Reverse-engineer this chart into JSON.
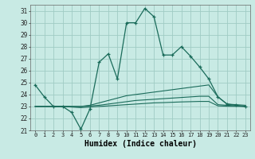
{
  "title": "",
  "xlabel": "Humidex (Indice chaleur)",
  "ylabel": "",
  "bg_color": "#c8eae4",
  "plot_bg_color": "#c8eae4",
  "grid_color": "#a0ccc4",
  "line_color": "#1a6b5a",
  "xlim": [
    -0.5,
    23.5
  ],
  "ylim": [
    21,
    31.5
  ],
  "yticks": [
    21,
    22,
    23,
    24,
    25,
    26,
    27,
    28,
    29,
    30,
    31
  ],
  "xticks": [
    0,
    1,
    2,
    3,
    4,
    5,
    6,
    7,
    8,
    9,
    10,
    11,
    12,
    13,
    14,
    15,
    16,
    17,
    18,
    19,
    20,
    21,
    22,
    23
  ],
  "lines": [
    {
      "x": [
        0,
        1,
        2,
        3,
        4,
        5,
        6,
        7,
        8,
        9,
        10,
        11,
        12,
        13,
        14,
        15,
        16,
        17,
        18,
        19,
        20,
        21,
        22,
        23
      ],
      "y": [
        24.8,
        23.8,
        23.0,
        23.0,
        22.5,
        21.1,
        22.8,
        26.7,
        27.4,
        25.3,
        30.0,
        30.0,
        31.2,
        30.5,
        27.3,
        27.3,
        28.0,
        27.2,
        26.3,
        25.3,
        23.8,
        23.2,
        23.1,
        23.0
      ],
      "marker": true
    },
    {
      "x": [
        0,
        1,
        2,
        3,
        4,
        5,
        6,
        7,
        8,
        9,
        10,
        11,
        12,
        13,
        14,
        15,
        16,
        17,
        18,
        19,
        20,
        21,
        22,
        23
      ],
      "y": [
        23.0,
        23.0,
        23.0,
        23.0,
        23.0,
        23.0,
        23.1,
        23.3,
        23.5,
        23.7,
        23.9,
        24.0,
        24.1,
        24.2,
        24.3,
        24.4,
        24.5,
        24.6,
        24.7,
        24.8,
        23.8,
        23.2,
        23.15,
        23.1
      ],
      "marker": false
    },
    {
      "x": [
        0,
        1,
        2,
        3,
        4,
        5,
        6,
        7,
        8,
        9,
        10,
        11,
        12,
        13,
        14,
        15,
        16,
        17,
        18,
        19,
        20,
        21,
        22,
        23
      ],
      "y": [
        23.0,
        23.0,
        23.0,
        23.0,
        23.0,
        23.0,
        23.05,
        23.1,
        23.2,
        23.3,
        23.4,
        23.5,
        23.55,
        23.6,
        23.65,
        23.7,
        23.75,
        23.8,
        23.85,
        23.85,
        23.15,
        23.1,
        23.05,
        23.0
      ],
      "marker": false
    },
    {
      "x": [
        0,
        1,
        2,
        3,
        4,
        5,
        6,
        7,
        8,
        9,
        10,
        11,
        12,
        13,
        14,
        15,
        16,
        17,
        18,
        19,
        20,
        21,
        22,
        23
      ],
      "y": [
        23.0,
        23.0,
        23.0,
        23.0,
        22.95,
        22.9,
        22.95,
        23.0,
        23.05,
        23.1,
        23.15,
        23.2,
        23.25,
        23.3,
        23.32,
        23.35,
        23.38,
        23.4,
        23.42,
        23.42,
        23.05,
        23.02,
        23.01,
        23.0
      ],
      "marker": false
    }
  ]
}
